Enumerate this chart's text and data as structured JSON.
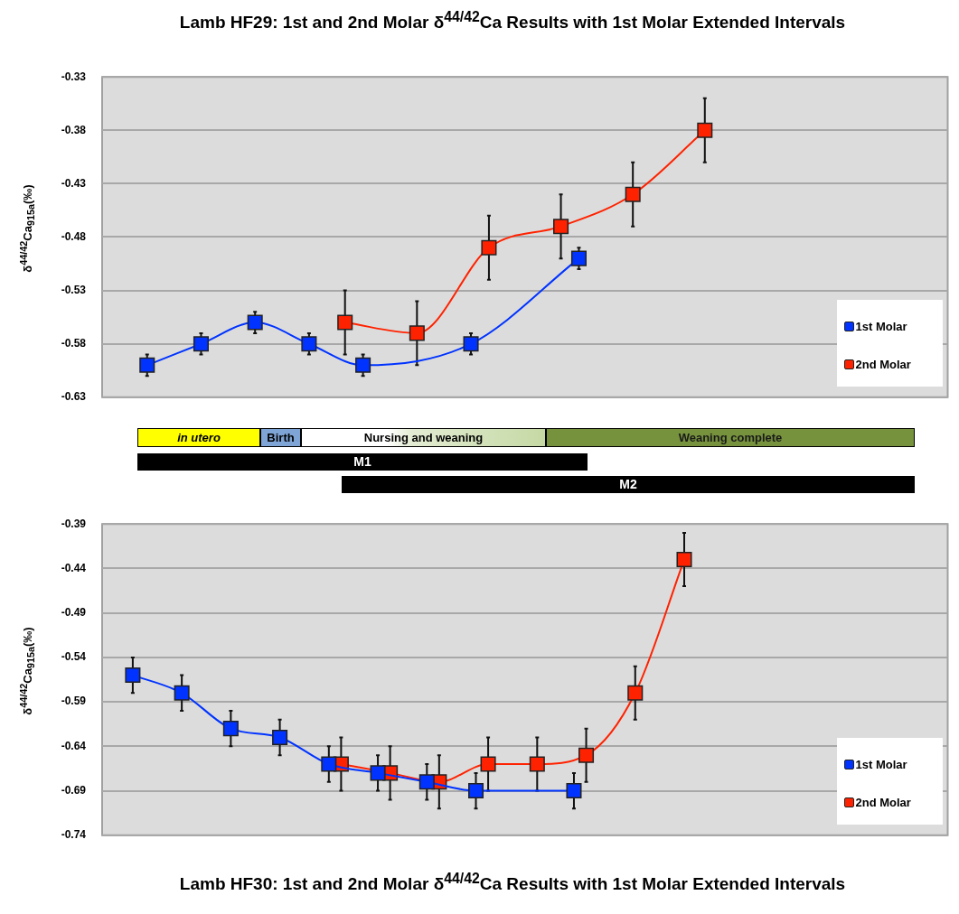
{
  "chart_data": [
    {
      "type": "line",
      "title": "Lamb HF29: 1st and 2nd Molar δ$^{44/42}$Ca Results with 1st Molar Extended Intervals",
      "ylabel": "δ$^{44/42}$Ca$_{915a}$(‰)",
      "annotations": [
        "in utero",
        "Birth",
        "Nursing and weaning",
        "Weaning complete",
        "M1",
        "M2"
      ],
      "categories": [
        null,
        null,
        null,
        null,
        null,
        null,
        null,
        null,
        null,
        null,
        null,
        null,
        null,
        null,
        null,
        null,
        null,
        null,
        null,
        null,
        null,
        null,
        null,
        null,
        null,
        null,
        null,
        null,
        null,
        null,
        null,
        null,
        null,
        null,
        null,
        null,
        null,
        null,
        null,
        null,
        null,
        null,
        null,
        null,
        null,
        null,
        null
      ],
      "series": [
        {
          "name": "1st Molar",
          "color": "#0033ff",
          "values": [
            null,
            null,
            -0.6,
            null,
            null,
            -0.58,
            null,
            null,
            -0.56,
            null,
            null,
            -0.58,
            null,
            null,
            -0.6,
            null,
            null,
            null,
            null,
            null,
            -0.58,
            null,
            null,
            null,
            null,
            null,
            -0.5,
            null,
            null,
            null,
            null,
            null,
            null,
            null,
            null,
            null,
            null,
            null,
            null,
            null,
            null,
            null,
            null,
            null,
            null,
            null,
            null
          ],
          "errors": [
            null,
            null,
            0.01,
            null,
            null,
            0.01,
            null,
            null,
            0.01,
            null,
            null,
            0.01,
            null,
            null,
            0.01,
            null,
            null,
            null,
            null,
            null,
            0.01,
            null,
            null,
            null,
            null,
            null,
            0.01,
            null,
            null,
            null,
            null,
            null,
            null,
            null,
            null,
            null,
            null,
            null,
            null,
            null,
            null,
            null,
            null,
            null,
            null,
            null,
            null
          ]
        },
        {
          "name": "2nd Molar",
          "color": "#ff2200",
          "values": [
            null,
            null,
            null,
            null,
            null,
            null,
            null,
            null,
            null,
            null,
            null,
            null,
            null,
            -0.56,
            null,
            null,
            null,
            -0.57,
            null,
            null,
            null,
            -0.49,
            null,
            null,
            null,
            -0.47,
            null,
            null,
            null,
            -0.44,
            null,
            null,
            null,
            -0.38,
            null,
            null,
            null,
            null,
            null,
            null,
            null,
            null,
            null,
            null,
            null,
            null,
            null
          ],
          "errors": [
            null,
            null,
            null,
            null,
            null,
            null,
            null,
            null,
            null,
            null,
            null,
            null,
            null,
            0.03,
            null,
            null,
            null,
            0.03,
            null,
            null,
            null,
            0.03,
            null,
            null,
            null,
            0.03,
            null,
            null,
            null,
            0.03,
            null,
            null,
            null,
            0.03,
            null,
            null,
            null,
            null,
            null,
            null,
            null,
            null,
            null,
            null,
            null,
            null,
            null
          ]
        }
      ],
      "ylim": [
        -0.63,
        -0.33
      ],
      "yticks": [
        -0.63,
        -0.58,
        -0.53,
        -0.48,
        -0.43,
        -0.38,
        -0.33
      ],
      "grid": "y",
      "legend": "bottom right",
      "tick_labels": "y",
      "marker": "square",
      "line_style": "solid"
    },
    {
      "type": "line",
      "title": "Lamb HF30: 1st and 2nd Molar δ$^{44/42}$Ca Results with 1st Molar Extended Intervals",
      "ylabel": "δ$^{44/42}$Ca$_{915a}$(‰)",
      "categories": [
        null,
        null,
        null,
        null,
        null,
        null,
        null,
        null,
        null,
        null,
        null,
        null,
        null,
        null,
        null,
        null,
        null,
        null,
        null,
        null,
        null,
        null,
        null,
        null,
        null,
        null,
        null,
        null,
        null,
        null,
        null,
        null,
        null,
        null,
        null,
        null,
        null,
        null,
        null,
        null,
        null,
        null,
        null,
        null,
        null,
        null,
        null,
        null,
        null,
        null,
        null,
        null,
        null,
        null,
        null,
        null,
        null,
        null,
        null,
        null,
        null,
        null,
        null,
        null,
        null,
        null,
        null,
        null,
        null
      ],
      "series": [
        {
          "name": "1st Molar",
          "color": "#0033ff",
          "values": [
            null,
            null,
            -0.56,
            null,
            null,
            null,
            -0.58,
            null,
            null,
            null,
            -0.62,
            null,
            null,
            null,
            -0.63,
            null,
            null,
            null,
            -0.66,
            null,
            null,
            null,
            -0.67,
            null,
            null,
            null,
            -0.68,
            null,
            null,
            null,
            -0.69,
            null,
            null,
            null,
            null,
            null,
            null,
            null,
            -0.69,
            null,
            null,
            null,
            null,
            null,
            null,
            null,
            null,
            null,
            null,
            null,
            null,
            null,
            null,
            null,
            null,
            null,
            null,
            null,
            null,
            null,
            null,
            null,
            null,
            null,
            null,
            null,
            null,
            null,
            null
          ],
          "errors": [
            null,
            null,
            0.02,
            null,
            null,
            null,
            0.02,
            null,
            null,
            null,
            0.02,
            null,
            null,
            null,
            0.02,
            null,
            null,
            null,
            0.02,
            null,
            null,
            null,
            0.02,
            null,
            null,
            null,
            0.02,
            null,
            null,
            null,
            0.02,
            null,
            null,
            null,
            null,
            null,
            null,
            null,
            0.02,
            null,
            null,
            null,
            null,
            null,
            null,
            null,
            null,
            null,
            null,
            null,
            null,
            null,
            null,
            null,
            null,
            null,
            null,
            null,
            null,
            null,
            null,
            null,
            null,
            null,
            null,
            null,
            null,
            null,
            null
          ]
        },
        {
          "name": "2nd Molar",
          "color": "#ff2200",
          "values": [
            null,
            null,
            null,
            null,
            null,
            null,
            null,
            null,
            null,
            null,
            null,
            null,
            null,
            null,
            null,
            null,
            null,
            null,
            null,
            -0.66,
            null,
            null,
            null,
            -0.67,
            null,
            null,
            null,
            -0.68,
            null,
            null,
            null,
            -0.66,
            null,
            null,
            null,
            -0.66,
            null,
            null,
            null,
            -0.65,
            null,
            null,
            null,
            -0.58,
            null,
            null,
            null,
            -0.43,
            null,
            null,
            null,
            null,
            null,
            null,
            null,
            null,
            null,
            null,
            null,
            null,
            null,
            null,
            null,
            null,
            null,
            null,
            null,
            null,
            null
          ],
          "errors": [
            null,
            null,
            null,
            null,
            null,
            null,
            null,
            null,
            null,
            null,
            null,
            null,
            null,
            null,
            null,
            null,
            null,
            null,
            null,
            0.03,
            null,
            null,
            null,
            0.03,
            null,
            null,
            null,
            0.03,
            null,
            null,
            null,
            0.03,
            null,
            null,
            null,
            0.03,
            null,
            null,
            null,
            0.03,
            null,
            null,
            null,
            0.03,
            null,
            null,
            null,
            0.03,
            null,
            null,
            null,
            null,
            null,
            null,
            null,
            null,
            null,
            null,
            null,
            null,
            null,
            null,
            null,
            null,
            null,
            null,
            null,
            null,
            null
          ]
        }
      ],
      "ylim": [
        -0.74,
        -0.39
      ],
      "yticks": [
        -0.74,
        -0.69,
        -0.64,
        -0.59,
        -0.54,
        -0.49,
        -0.44,
        -0.39
      ],
      "grid": "y",
      "legend": "bottom right",
      "tick_labels": "y",
      "marker": "square",
      "line_style": "solid"
    }
  ]
}
